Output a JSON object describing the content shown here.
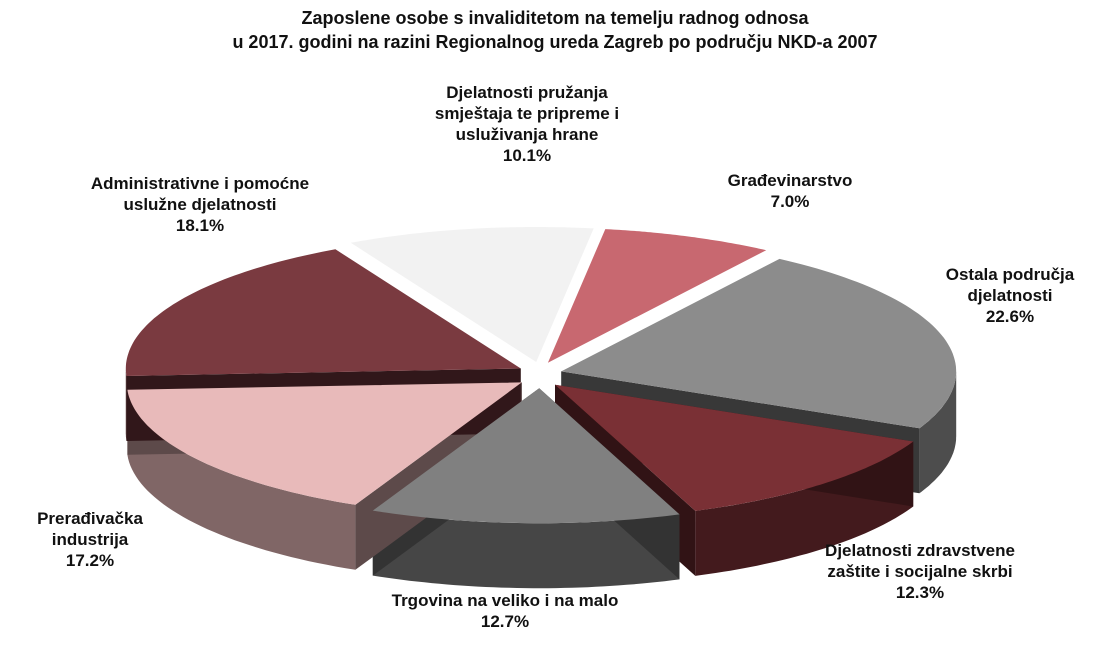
{
  "chart_data": {
    "type": "pie",
    "title": [
      "Zaposlene osobe s invaliditetom na temelju radnog odnosa",
      "u 2017. godini  na razini Regionalnog ureda Zagreb po području NKD-a 2007"
    ],
    "categories": [
      "Djelatnosti pružanja smještaja te pripreme i usluživanja hrane",
      "Građevinarstvo",
      "Ostala područja djelatnosti",
      "Djelatnosti zdravstvene zaštite i socijalne skrbi",
      "Trgovina na veliko i na malo",
      "Prerađivačka industrija",
      "Administrativne i pomoćne uslužne djelatnosti"
    ],
    "values": [
      10.1,
      7.0,
      22.6,
      12.3,
      12.7,
      17.2,
      18.1
    ],
    "value_labels": [
      "10.1%",
      "7.0%",
      "22.6%",
      "12.3%",
      "12.7%",
      "17.2%",
      "18.1%"
    ],
    "colors": [
      "#f2f2f2",
      "#c86870",
      "#8c8c8c",
      "#7a3035",
      "#808080",
      "#e8baba",
      "#7a3a40"
    ]
  }
}
